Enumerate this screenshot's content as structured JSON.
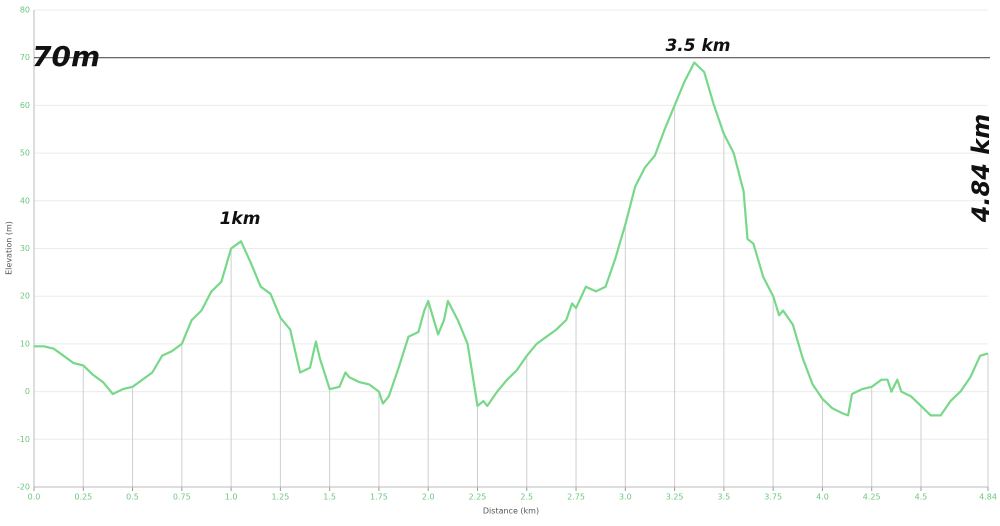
{
  "chart_data": {
    "type": "line",
    "x_label": "Distance (km)",
    "y_label": "Elevation (m)",
    "color": "#78d88a",
    "grid": true,
    "xlim": [
      0,
      4.84
    ],
    "ylim": [
      -20,
      80
    ],
    "xticks": [
      {
        "value": 0,
        "label": "0.0"
      },
      0.25,
      0.5,
      0.75,
      {
        "value": 1,
        "label": "1.0"
      },
      1.25,
      1.5,
      1.75,
      {
        "value": 2,
        "label": "2.0"
      },
      2.25,
      2.5,
      2.75,
      {
        "value": 3,
        "label": "3.0"
      },
      3.25,
      3.5,
      3.75,
      {
        "value": 4,
        "label": "4.0"
      },
      4.25,
      4.5,
      4.84
    ],
    "yticks": [
      -20,
      -10,
      0,
      10,
      20,
      30,
      40,
      50,
      60,
      70,
      80
    ],
    "reference_line": {
      "value": 70,
      "label": "70m"
    },
    "annotations": [
      "3.5 km",
      "1km",
      "4.84 km"
    ],
    "x": [
      0,
      0.05,
      0.1,
      0.15,
      0.2,
      0.25,
      0.3,
      0.35,
      0.4,
      0.45,
      0.5,
      0.55,
      0.6,
      0.65,
      0.7,
      0.75,
      0.8,
      0.85,
      0.9,
      0.95,
      1.0,
      1.05,
      1.1,
      1.15,
      1.2,
      1.25,
      1.3,
      1.35,
      1.4,
      1.43,
      1.45,
      1.5,
      1.55,
      1.58,
      1.6,
      1.65,
      1.7,
      1.75,
      1.77,
      1.8,
      1.85,
      1.9,
      1.95,
      1.98,
      2.0,
      2.05,
      2.08,
      2.1,
      2.15,
      2.2,
      2.25,
      2.28,
      2.3,
      2.35,
      2.4,
      2.45,
      2.5,
      2.55,
      2.6,
      2.65,
      2.7,
      2.73,
      2.75,
      2.8,
      2.85,
      2.9,
      2.95,
      3.0,
      3.05,
      3.1,
      3.15,
      3.2,
      3.25,
      3.3,
      3.35,
      3.4,
      3.45,
      3.5,
      3.55,
      3.6,
      3.62,
      3.65,
      3.7,
      3.75,
      3.78,
      3.8,
      3.85,
      3.9,
      3.95,
      4.0,
      4.05,
      4.1,
      4.13,
      4.15,
      4.2,
      4.25,
      4.3,
      4.33,
      4.35,
      4.38,
      4.4,
      4.45,
      4.5,
      4.55,
      4.6,
      4.65,
      4.7,
      4.75,
      4.8,
      4.84
    ],
    "values": [
      9.5,
      9.5,
      9,
      7.5,
      6,
      5.5,
      3.5,
      2,
      -0.5,
      0.5,
      1,
      2.5,
      4,
      7.5,
      8.5,
      10,
      15,
      17,
      21,
      23,
      30,
      31.5,
      27,
      22,
      20.5,
      15.5,
      13,
      4,
      5,
      10.5,
      7,
      0.5,
      1,
      4,
      3,
      2,
      1.5,
      0,
      -2.5,
      -1,
      5,
      11.5,
      12.5,
      17,
      19,
      12,
      15,
      19,
      15,
      10,
      -3,
      -2,
      -3,
      0,
      2.5,
      4.5,
      7.5,
      10,
      11.5,
      13,
      15,
      18.5,
      17.5,
      22,
      21,
      22,
      28,
      35,
      43,
      47,
      49.5,
      55,
      60,
      65,
      69,
      67,
      60,
      54,
      50,
      42,
      32,
      31,
      24,
      20,
      16,
      17,
      14,
      7,
      1.5,
      -1.5,
      -3.5,
      -4.5,
      -5,
      -0.5,
      0.5,
      1,
      2.5,
      2.5,
      0,
      2.5,
      0,
      -1,
      -3,
      -5,
      -5,
      -2,
      0,
      3,
      7.5,
      8
    ]
  }
}
